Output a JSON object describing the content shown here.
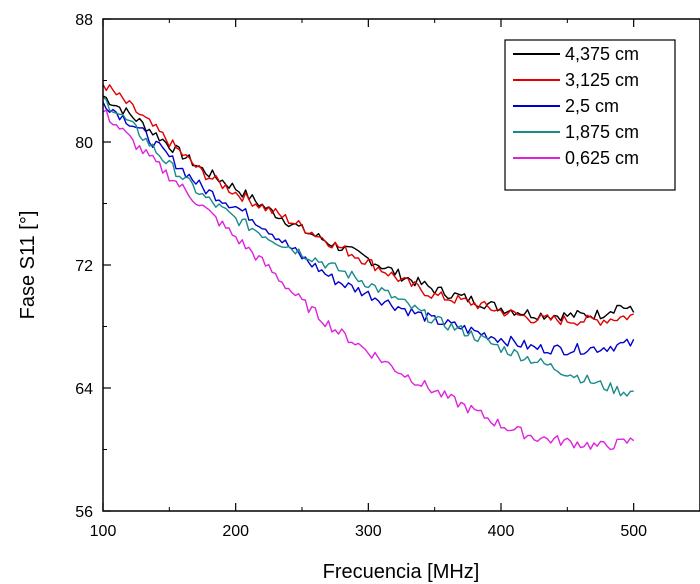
{
  "chart_data": {
    "type": "line",
    "title": "",
    "xlabel": "Frecuencia [MHz]",
    "ylabel": "Fase S11 [°]",
    "xlim": [
      100,
      550
    ],
    "ylim": [
      56,
      88
    ],
    "xticks": [
      100,
      200,
      300,
      400,
      500
    ],
    "yticks": [
      56,
      64,
      72,
      80,
      88
    ],
    "grid": false,
    "legend_position": "top-right",
    "series": [
      {
        "name": "4,375 cm",
        "color": "#000000",
        "x": [
          100,
          125,
          150,
          175,
          200,
          225,
          250,
          275,
          300,
          325,
          350,
          375,
          400,
          425,
          450,
          475,
          490,
          500
        ],
        "y": [
          83.0,
          81.5,
          79.8,
          78.2,
          77.0,
          75.6,
          74.3,
          73.3,
          72.4,
          71.3,
          70.4,
          69.8,
          69.2,
          68.8,
          68.7,
          68.8,
          69.4,
          68.9
        ]
      },
      {
        "name": "3,125 cm",
        "color": "#e00000",
        "x": [
          100,
          125,
          150,
          175,
          200,
          225,
          250,
          275,
          300,
          325,
          350,
          375,
          400,
          425,
          450,
          475,
          490,
          500
        ],
        "y": [
          83.8,
          82.0,
          80.0,
          78.0,
          76.7,
          75.6,
          74.5,
          73.3,
          72.2,
          71.0,
          70.0,
          69.6,
          69.0,
          68.5,
          68.4,
          68.4,
          68.6,
          68.7
        ]
      },
      {
        "name": "2,5 cm",
        "color": "#0000cc",
        "x": [
          100,
          125,
          150,
          175,
          200,
          225,
          250,
          275,
          300,
          325,
          350,
          375,
          400,
          425,
          450,
          475,
          490,
          500
        ],
        "y": [
          82.6,
          81.0,
          79.0,
          77.0,
          75.8,
          74.3,
          72.5,
          71.0,
          70.1,
          69.2,
          68.4,
          67.8,
          67.2,
          66.6,
          66.5,
          66.6,
          66.8,
          66.9
        ]
      },
      {
        "name": "1,875 cm",
        "color": "#1a8a8a",
        "x": [
          100,
          125,
          150,
          175,
          200,
          225,
          250,
          275,
          300,
          325,
          350,
          375,
          400,
          425,
          450,
          475,
          490,
          500
        ],
        "y": [
          82.8,
          80.8,
          78.5,
          76.5,
          75.0,
          73.8,
          72.8,
          71.8,
          70.8,
          69.6,
          68.4,
          67.6,
          66.6,
          65.8,
          65.0,
          64.2,
          63.8,
          63.7
        ]
      },
      {
        "name": "0,625 cm",
        "color": "#dd22dd",
        "x": [
          100,
          125,
          150,
          175,
          200,
          225,
          250,
          275,
          300,
          325,
          350,
          375,
          400,
          425,
          450,
          475,
          490,
          500
        ],
        "y": [
          82.0,
          79.8,
          77.8,
          75.8,
          73.8,
          71.8,
          69.6,
          67.8,
          66.4,
          65.0,
          63.8,
          62.7,
          61.6,
          60.8,
          60.5,
          60.2,
          60.4,
          60.6
        ]
      }
    ]
  }
}
